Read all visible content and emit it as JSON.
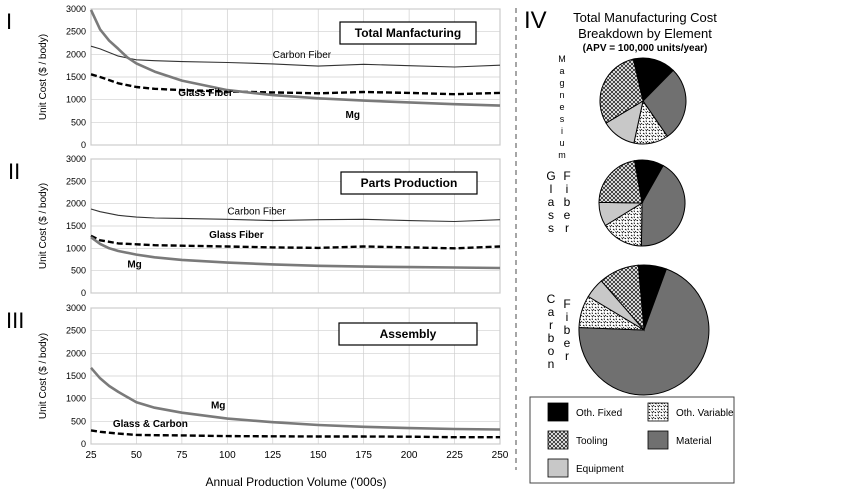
{
  "colors": {
    "carbon": "#333333",
    "mg": "#7a7a7a",
    "glass": "#000000",
    "grid": "#cfcfcf",
    "fixed": "#000000",
    "variable": "#ffffff",
    "tooling": "#ffffff",
    "material": "#707070",
    "equipment": "#c8c8c8"
  },
  "xaxis": {
    "label": "Annual Production Volume ('000s)",
    "ticks": [
      25,
      50,
      75,
      100,
      125,
      150,
      175,
      200,
      225,
      250
    ]
  },
  "yaxis": {
    "label": "Unit Cost ($ / body)",
    "ticks": [
      0,
      500,
      1000,
      1500,
      2000,
      2500,
      3000
    ]
  },
  "chart_data": [
    {
      "type": "line",
      "panel_label": "I",
      "title": "Total Manfacturing",
      "xlabel": "Annual Production Volume ('000s)",
      "ylabel": "Unit Cost ($ / body)",
      "xlim": [
        25,
        250
      ],
      "ylim": [
        0,
        3000
      ],
      "grid": true,
      "series_labels": [
        {
          "series": "Carbon Fiber",
          "text": "Carbon Fiber",
          "x": 125,
          "y": 1920,
          "bold": false
        },
        {
          "series": "Glass Fiber",
          "text": "Glass Fiber",
          "x": 73,
          "y": 1080,
          "bold": true
        },
        {
          "series": "Mg",
          "text": "Mg",
          "x": 165,
          "y": 600,
          "bold": true
        }
      ],
      "series": [
        {
          "name": "Carbon Fiber",
          "style": "thin",
          "x": [
            25,
            30,
            40,
            50,
            60,
            75,
            100,
            125,
            150,
            175,
            200,
            225,
            250
          ],
          "y": [
            2180,
            2120,
            1960,
            1880,
            1860,
            1840,
            1820,
            1790,
            1740,
            1780,
            1750,
            1720,
            1760
          ]
        },
        {
          "name": "Glass Fiber",
          "style": "dashed",
          "x": [
            25,
            30,
            40,
            50,
            60,
            75,
            100,
            125,
            150,
            175,
            200,
            225,
            250
          ],
          "y": [
            1560,
            1500,
            1360,
            1280,
            1240,
            1210,
            1180,
            1160,
            1140,
            1170,
            1150,
            1120,
            1150
          ]
        },
        {
          "name": "Mg",
          "style": "thick",
          "x": [
            25,
            30,
            35,
            40,
            45,
            50,
            60,
            75,
            100,
            125,
            150,
            175,
            200,
            225,
            250
          ],
          "y": [
            2980,
            2550,
            2300,
            2120,
            1930,
            1800,
            1620,
            1420,
            1210,
            1100,
            1030,
            980,
            940,
            900,
            870
          ]
        }
      ]
    },
    {
      "type": "line",
      "panel_label": "II",
      "title": "Parts Production",
      "xlabel": "Annual Production Volume ('000s)",
      "ylabel": "Unit Cost ($ / body)",
      "xlim": [
        25,
        250
      ],
      "ylim": [
        0,
        3000
      ],
      "grid": true,
      "series_labels": [
        {
          "series": "Carbon Fiber",
          "text": "Carbon Fiber",
          "x": 100,
          "y": 1760,
          "bold": false
        },
        {
          "series": "Glass Fiber",
          "text": "Glass Fiber",
          "x": 90,
          "y": 1230,
          "bold": true
        },
        {
          "series": "Mg",
          "text": "Mg",
          "x": 45,
          "y": 570,
          "bold": true
        }
      ],
      "series": [
        {
          "name": "Carbon Fiber",
          "style": "thin",
          "x": [
            25,
            30,
            40,
            50,
            60,
            75,
            100,
            125,
            150,
            175,
            200,
            225,
            250
          ],
          "y": [
            1880,
            1820,
            1740,
            1700,
            1680,
            1670,
            1650,
            1620,
            1640,
            1650,
            1620,
            1600,
            1640
          ]
        },
        {
          "name": "Glass Fiber",
          "style": "dashed",
          "x": [
            25,
            30,
            40,
            50,
            60,
            75,
            100,
            125,
            150,
            175,
            200,
            225,
            250
          ],
          "y": [
            1280,
            1180,
            1110,
            1090,
            1070,
            1060,
            1040,
            1020,
            1010,
            1040,
            1020,
            1000,
            1040
          ]
        },
        {
          "name": "Mg",
          "style": "thick",
          "x": [
            25,
            30,
            35,
            40,
            50,
            60,
            75,
            100,
            125,
            150,
            175,
            200,
            225,
            250
          ],
          "y": [
            1250,
            1100,
            1000,
            940,
            860,
            800,
            740,
            680,
            640,
            610,
            590,
            580,
            570,
            560
          ]
        }
      ]
    },
    {
      "type": "line",
      "panel_label": "III",
      "title": "Assembly",
      "xlabel": "Annual Production Volume ('000s)",
      "ylabel": "Unit Cost ($ / body)",
      "xlim": [
        25,
        250
      ],
      "ylim": [
        0,
        3000
      ],
      "grid": true,
      "series_labels": [
        {
          "series": "Mg",
          "text": "Mg",
          "x": 91,
          "y": 780,
          "bold": true
        },
        {
          "series": "Glass & Carbon",
          "text": "Glass & Carbon",
          "x": 37,
          "y": 380,
          "bold": true
        }
      ],
      "series": [
        {
          "name": "Glass & Carbon",
          "style": "dashed",
          "x": [
            25,
            30,
            40,
            50,
            60,
            75,
            100,
            125,
            150,
            175,
            200,
            225,
            250
          ],
          "y": [
            300,
            270,
            230,
            200,
            195,
            190,
            175,
            170,
            165,
            165,
            160,
            150,
            150
          ]
        },
        {
          "name": "Mg",
          "style": "thick",
          "x": [
            25,
            30,
            35,
            40,
            50,
            60,
            75,
            100,
            125,
            150,
            175,
            200,
            225,
            250
          ],
          "y": [
            1680,
            1450,
            1280,
            1150,
            920,
            800,
            690,
            560,
            480,
            420,
            380,
            350,
            330,
            320
          ]
        }
      ]
    },
    {
      "type": "pie",
      "panel_label": "IV",
      "title": "Total Manufacturing Cost",
      "subtitle": "Breakdown by Element",
      "note": "(APV = 100,000 units/year)",
      "legend": [
        {
          "key": "fixed",
          "label": "Oth. Fixed"
        },
        {
          "key": "variable",
          "label": "Oth. Variable"
        },
        {
          "key": "tooling",
          "label": "Tooling"
        },
        {
          "key": "material",
          "label": "Material"
        },
        {
          "key": "equipment",
          "label": "Equipment"
        }
      ],
      "pies": [
        {
          "name": "Magnesium",
          "letters": [
            "M",
            "a",
            "g",
            "n",
            "e",
            "s",
            "i",
            "u",
            "m"
          ],
          "slices": [
            {
              "key": "fixed",
              "value": 16
            },
            {
              "key": "material",
              "value": 28
            },
            {
              "key": "variable",
              "value": 13
            },
            {
              "key": "equipment",
              "value": 13
            },
            {
              "key": "tooling",
              "value": 30
            }
          ]
        },
        {
          "name": "Glass Fiber",
          "letters_left": [
            "G",
            "l",
            "a",
            "s",
            "s"
          ],
          "letters_right": [
            "F",
            "i",
            "b",
            "e",
            "r"
          ],
          "slices": [
            {
              "key": "fixed",
              "value": 11
            },
            {
              "key": "material",
              "value": 42
            },
            {
              "key": "variable",
              "value": 16
            },
            {
              "key": "equipment",
              "value": 9
            },
            {
              "key": "tooling",
              "value": 22
            }
          ]
        },
        {
          "name": "Carbon Fiber",
          "letters_left": [
            "C",
            "a",
            "r",
            "b",
            "o",
            "n"
          ],
          "letters_right": [
            "F",
            "i",
            "b",
            "e",
            "r"
          ],
          "slices": [
            {
              "key": "fixed",
              "value": 7
            },
            {
              "key": "material",
              "value": 70
            },
            {
              "key": "variable",
              "value": 8
            },
            {
              "key": "equipment",
              "value": 5
            },
            {
              "key": "tooling",
              "value": 10
            }
          ]
        }
      ]
    }
  ]
}
